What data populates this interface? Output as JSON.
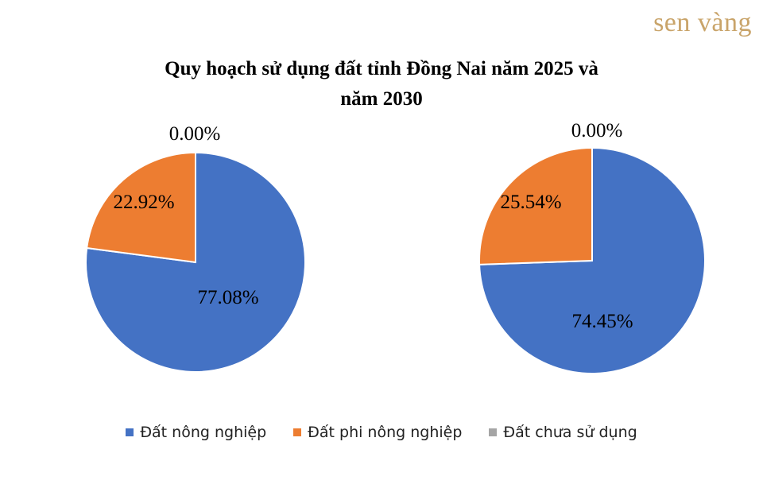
{
  "brand": {
    "logo_text": "sen vàng"
  },
  "chart_data": [
    {
      "type": "pie",
      "title": "Quy hoạch sử dụng đất tỉnh Đồng Nai năm 2025 và năm 2030",
      "categories": [
        "Đất nông nghiệp",
        "Đất phi nông nghiệp",
        "Đất chưa sử dụng"
      ],
      "values": [
        77.08,
        22.92,
        0.0
      ],
      "labels": [
        "77.08%",
        "22.92%",
        "0.00%"
      ],
      "colors": [
        "#4472c4",
        "#ed7d31",
        "#a5a5a5"
      ]
    },
    {
      "type": "pie",
      "categories": [
        "Đất nông nghiệp",
        "Đất phi nông nghiệp",
        "Đất chưa sử dụng"
      ],
      "values": [
        74.45,
        25.54,
        0.0
      ],
      "labels": [
        "74.45%",
        "25.54%",
        "0.00%"
      ],
      "colors": [
        "#4472c4",
        "#ed7d31",
        "#a5a5a5"
      ]
    }
  ],
  "title_lines": [
    "Quy hoạch sử dụng đất tỉnh Đồng Nai năm 2025 và",
    "năm 2030"
  ],
  "legend": [
    {
      "label": "Đất nông nghiệp",
      "color": "#4472c4"
    },
    {
      "label": "Đất phi nông nghiệp",
      "color": "#ed7d31"
    },
    {
      "label": "Đất chưa sử dụng",
      "color": "#a5a5a5"
    }
  ]
}
